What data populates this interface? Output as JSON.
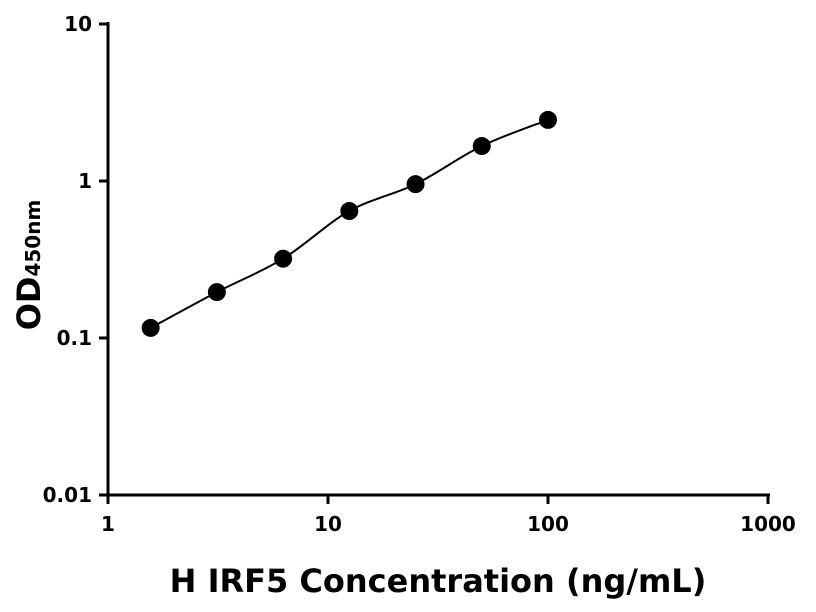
{
  "chart_data": {
    "type": "scatter",
    "x_label": "H IRF5 Concentration (ng/mL)",
    "y_label": "OD",
    "y_label_sub": "450nm",
    "x": [
      1.5625,
      3.125,
      6.25,
      12.5,
      25,
      50,
      100
    ],
    "series": [
      {
        "color": "#000000",
        "values": [
          0.116,
          0.196,
          0.32,
          0.644,
          0.955,
          1.67,
          2.45
        ]
      }
    ],
    "xscale": "log",
    "yscale": "log",
    "fit_curve": true,
    "xlim": [
      1,
      1000
    ],
    "xticks": [
      1,
      10,
      100,
      1000
    ],
    "ylim": [
      0.01,
      10
    ],
    "yticks": [
      0.01,
      0.1,
      1,
      10
    ]
  }
}
